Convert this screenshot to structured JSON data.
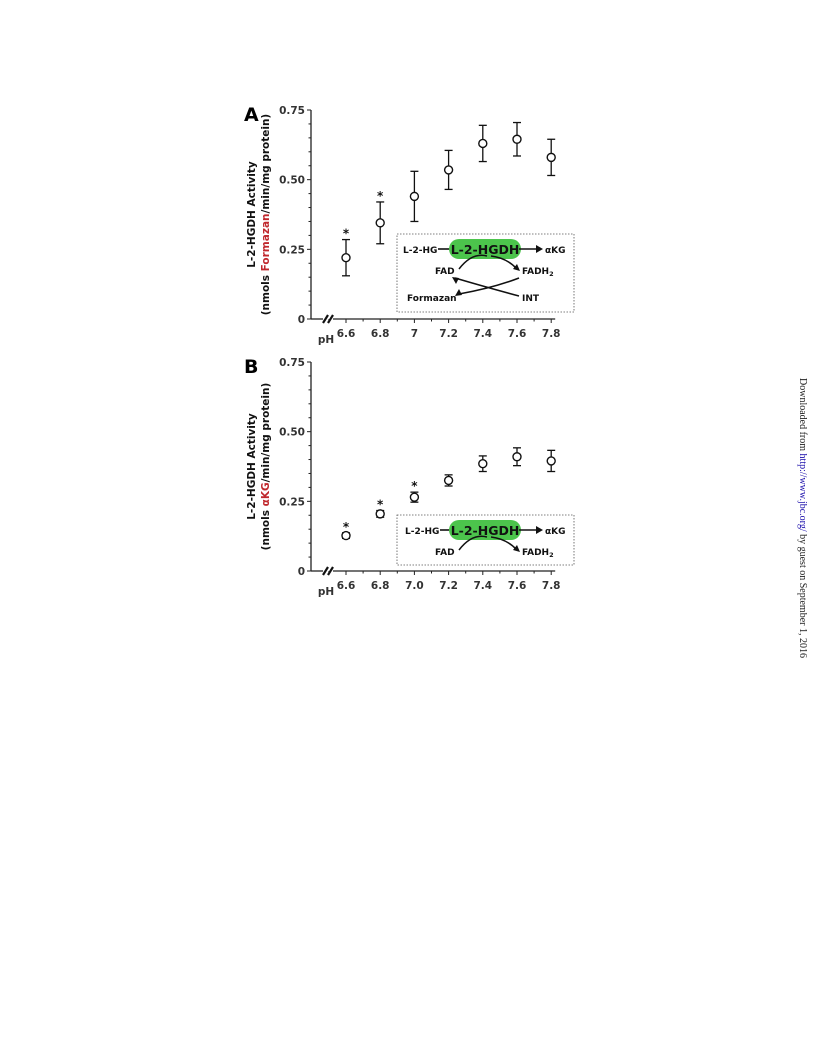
{
  "side_note": {
    "prefix": "Downloaded from ",
    "link": "http://www.jbc.org/",
    "suffix": " by guest on September 1, 2016"
  },
  "scheme_labels": {
    "enzyme": "L-2-HGDH",
    "substrate": "L-2-HG",
    "product": "αKG",
    "fad": "FAD",
    "fadh2_base": "FADH",
    "fadh2_sub": "2",
    "formazan": "Formazan",
    "int": "INT"
  },
  "colors": {
    "highlight": "#c0282d",
    "enzyme_fill": "#4cc44c",
    "marker_stroke": "#111111"
  },
  "chart_data": [
    {
      "panel": "A",
      "type": "scatter",
      "xlabel": "pH",
      "ylabel_parts": [
        "L-2-HGDH Activity",
        "(nmols ",
        "Formazan",
        "/min/mg protein)"
      ],
      "ylim": [
        0,
        0.75
      ],
      "yticks": [
        "0",
        "0.25",
        "0.50",
        "0.75"
      ],
      "xticks": [
        "6.6",
        "6.8",
        "7",
        "7.2",
        "7.4",
        "7.6",
        "7.8"
      ],
      "axis_break": true,
      "x": [
        6.6,
        6.8,
        7.0,
        7.2,
        7.4,
        7.6,
        7.8
      ],
      "y": [
        0.22,
        0.345,
        0.44,
        0.535,
        0.63,
        0.645,
        0.58
      ],
      "err": [
        0.065,
        0.075,
        0.09,
        0.07,
        0.065,
        0.06,
        0.065
      ],
      "significant": [
        true,
        true,
        false,
        false,
        false,
        false,
        false
      ],
      "annotation": "*",
      "scheme": "full"
    },
    {
      "panel": "B",
      "type": "scatter",
      "xlabel": "pH",
      "ylabel_parts": [
        "L-2-HGDH Activity",
        "(nmols ",
        "αKG",
        "/min/mg protein)"
      ],
      "ylim": [
        0,
        0.75
      ],
      "yticks": [
        "0",
        "0.25",
        "0.50",
        "0.75"
      ],
      "xticks": [
        "6.6",
        "6.8",
        "7.0",
        "7.2",
        "7.4",
        "7.6",
        "7.8"
      ],
      "axis_break": true,
      "x": [
        6.6,
        6.8,
        7.0,
        7.2,
        7.4,
        7.6,
        7.8
      ],
      "y": [
        0.127,
        0.205,
        0.265,
        0.325,
        0.385,
        0.41,
        0.395
      ],
      "err": [
        0.01,
        0.012,
        0.018,
        0.02,
        0.028,
        0.032,
        0.038
      ],
      "significant": [
        true,
        true,
        true,
        false,
        false,
        false,
        false
      ],
      "annotation": "*",
      "scheme": "simple"
    }
  ]
}
